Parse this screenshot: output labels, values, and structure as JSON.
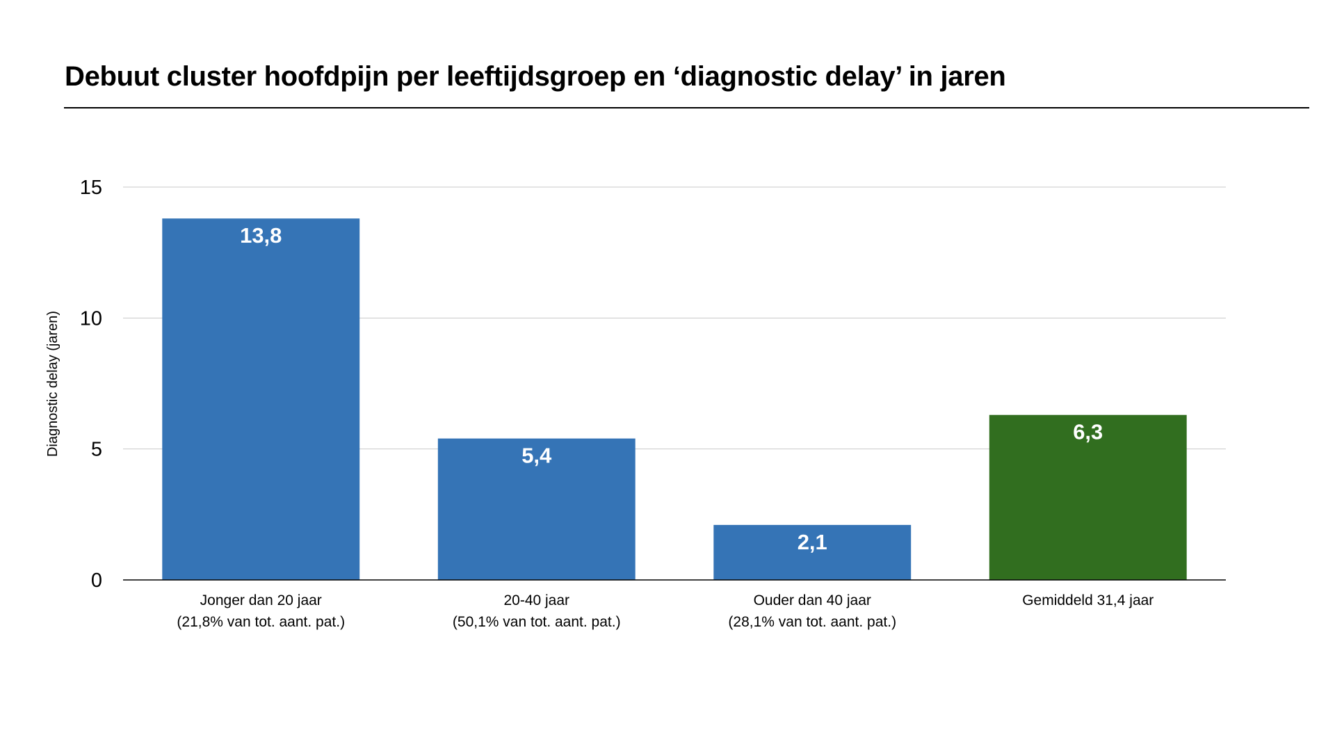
{
  "chart_data": {
    "type": "bar",
    "title": "Debuut cluster hoofdpijn per leeftijdsgroep en ‘diagnostic delay’ in jaren",
    "xlabel": "",
    "ylabel": "Diagnostic delay (jaren)",
    "ylim": [
      0,
      15
    ],
    "y_ticks": [
      0,
      5,
      10,
      15
    ],
    "y_tick_labels": [
      "0",
      "5",
      "10",
      "15"
    ],
    "grid": true,
    "legend": "none",
    "categories": [
      [
        "Jonger dan 20 jaar",
        "(21,8% van tot. aant. pat.)"
      ],
      [
        "20-40 jaar",
        "(50,1% van tot. aant. pat.)"
      ],
      [
        "Ouder dan 40 jaar",
        "(28,1% van tot. aant. pat.)"
      ],
      [
        "Gemiddeld 31,4 jaar"
      ]
    ],
    "values": [
      13.8,
      5.4,
      2.1,
      6.3
    ],
    "value_labels": [
      "13,8",
      "5,4",
      "2,1",
      "6,3"
    ],
    "bar_colors": [
      "#3574b6",
      "#3574b6",
      "#3574b6",
      "#316e1f"
    ]
  },
  "colors": {
    "grid": "#c8c8c8",
    "axis": "#000000",
    "label_on_bar": "#ffffff"
  }
}
